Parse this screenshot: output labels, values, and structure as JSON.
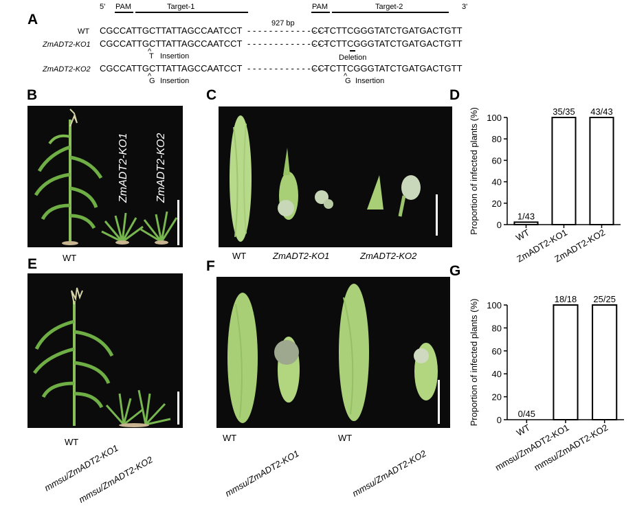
{
  "panels": {
    "A": "A",
    "B": "B",
    "C": "C",
    "D": "D",
    "E": "E",
    "F": "F",
    "G": "G"
  },
  "seqA": {
    "five_prime": "5'",
    "three_prime": "3'",
    "pam": "PAM",
    "target1": "Target-1",
    "target2": "Target-2",
    "gap_label": "927 bp",
    "rows": [
      {
        "label": "WT",
        "left": "CGCCATTGCTTATTAGCCAATCCT",
        "dash": "- - - - - - - - - - - - - - -",
        "right": "CCTCTTCGGGTATCTGATGACTGTT"
      },
      {
        "label": "ZmADT2-KO1",
        "left": "CGCCATTGCTTATTAGCCAATCCT",
        "dash": "- - - - - - - - - - - - - - -",
        "right": "CCTCTTCGGGTATCTGATGACTGTT"
      },
      {
        "label": "ZmADT2-KO2",
        "left": "CGCCATTGCTTATTAGCCAATCCT",
        "dash": "- - - - - - - - - - - - - - -",
        "right": "CCTCTTCGGGTATCTGATGACTGTT"
      }
    ],
    "ko1_ins_base": "T",
    "ko1_ins_text": "Insertion",
    "ko1_del_text": "Deletion",
    "ko2_ins1_base": "G",
    "ko2_ins1_text": "Insertion",
    "ko2_ins2_base": "G",
    "ko2_ins2_text": "Insertion"
  },
  "panelB": {
    "label_wt": "WT",
    "label_ko1": "ZmADT2-KO1",
    "label_ko2": "ZmADT2-KO2"
  },
  "panelC": {
    "label_wt": "WT",
    "label_ko1": "ZmADT2-KO1",
    "label_ko2": "ZmADT2-KO2"
  },
  "panelE": {
    "label_wt": "WT",
    "label_ko1": "mmsu/ZmADT2-KO1",
    "label_ko2": "mmsu/ZmADT2-KO2"
  },
  "panelF": {
    "label_wt1": "WT",
    "label_ko1": "mmsu/ZmADT2-KO1",
    "label_wt2": "WT",
    "label_ko2": "mmsu/ZmADT2-KO2"
  },
  "chart_data": [
    {
      "type": "bar",
      "panel": "D",
      "categories": [
        "WT",
        "ZmADT2-KO1",
        "ZmADT2-KO2"
      ],
      "values": [
        2.3,
        100,
        100
      ],
      "data_labels": [
        "1/43",
        "35/35",
        "43/43"
      ],
      "ylabel": "Proportion of infected plants (%)",
      "yticks": [
        0,
        20,
        40,
        60,
        80,
        100
      ],
      "ylim": [
        0,
        100
      ]
    },
    {
      "type": "bar",
      "panel": "G",
      "categories": [
        "WT",
        "mmsu/ZmADT2-KO1",
        "mmsu/ZmADT2-KO2"
      ],
      "values": [
        0,
        100,
        100
      ],
      "data_labels": [
        "0/45",
        "18/18",
        "25/25"
      ],
      "ylabel": "Proportion of infected plants (%)",
      "yticks": [
        0,
        20,
        40,
        60,
        80,
        100
      ],
      "ylim": [
        0,
        100
      ]
    }
  ]
}
